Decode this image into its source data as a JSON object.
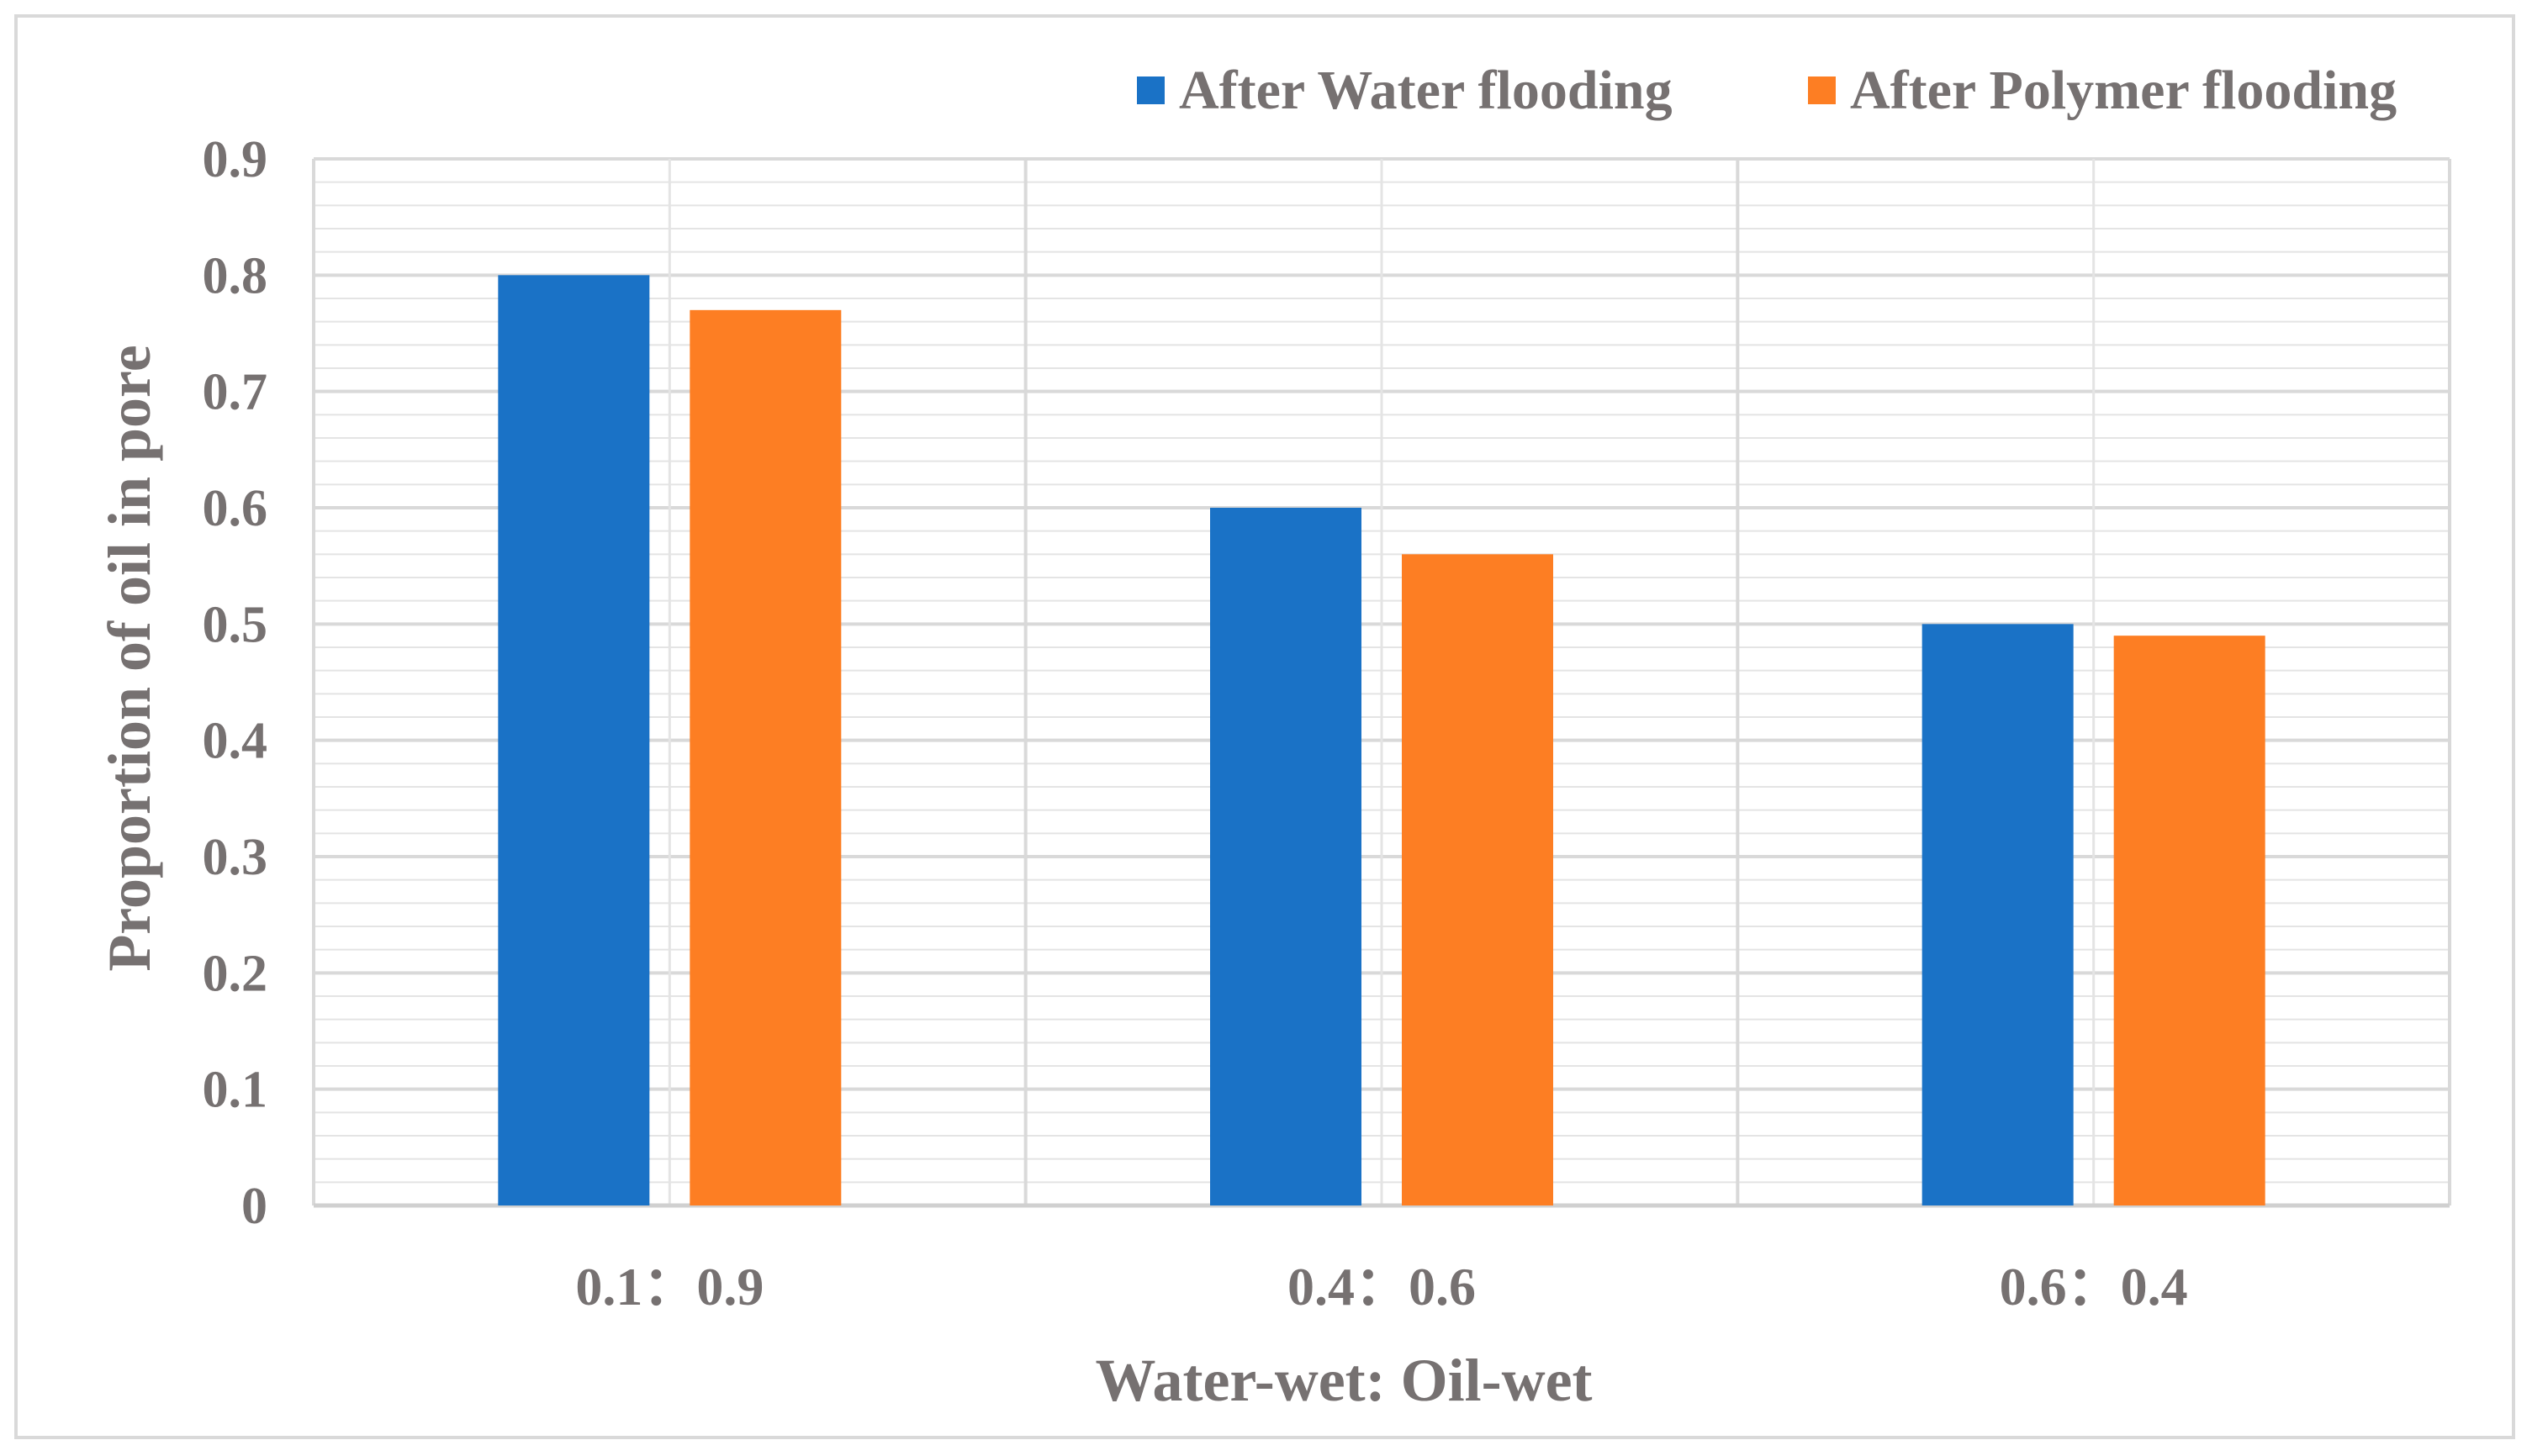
{
  "chart_data": {
    "type": "bar",
    "title": "",
    "xlabel": "Water-wet: Oil-wet",
    "ylabel": "Proportion of oil in pore",
    "categories": [
      "0.1：0.9",
      "0.4：0.6",
      "0.6：0.4"
    ],
    "series": [
      {
        "name": "After Water flooding",
        "color": "#1a72c6",
        "values": [
          0.8,
          0.6,
          0.5
        ]
      },
      {
        "name": "After Polymer flooding",
        "color": "#fd7e23",
        "values": [
          0.77,
          0.56,
          0.49
        ]
      }
    ],
    "ylim": [
      0,
      0.9
    ],
    "yticks": [
      "0",
      "0.1",
      "0.2",
      "0.3",
      "0.4",
      "0.5",
      "0.6",
      "0.7",
      "0.8",
      "0.9"
    ],
    "grid": true,
    "legend_position": "top-right"
  }
}
